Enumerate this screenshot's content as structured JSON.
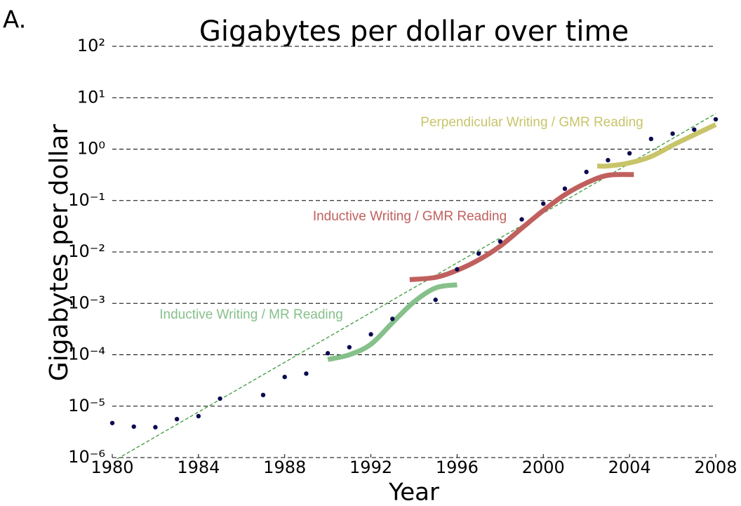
{
  "chart_data": {
    "type": "scatter",
    "panel_label": "A.",
    "title": "Gigabytes per dollar over time",
    "xlabel": "Year",
    "ylabel": "Gigabytes per dollar",
    "xlim": [
      1980,
      2008
    ],
    "ylim": [
      1e-06,
      100
    ],
    "yscale": "log",
    "grid": true,
    "xticks": [
      1980,
      1984,
      1988,
      1992,
      1996,
      2000,
      2004,
      2008
    ],
    "yticks": [
      {
        "value": 1e-06,
        "label": "10⁻⁶"
      },
      {
        "value": 1e-05,
        "label": "10⁻⁵"
      },
      {
        "value": 0.0001,
        "label": "10⁻⁴"
      },
      {
        "value": 0.001,
        "label": "10⁻³"
      },
      {
        "value": 0.01,
        "label": "10⁻²"
      },
      {
        "value": 0.1,
        "label": "10⁻¹"
      },
      {
        "value": 1,
        "label": "10⁰"
      },
      {
        "value": 10,
        "label": "10¹"
      },
      {
        "value": 100,
        "label": "10²"
      }
    ],
    "points": {
      "color": "#0b0b50",
      "x": [
        1980,
        1981,
        1982,
        1983,
        1984,
        1985,
        1987,
        1988,
        1989,
        1990,
        1991,
        1992,
        1993,
        1995,
        1996,
        1997,
        1998,
        1999,
        2000,
        2001,
        2002,
        2003,
        2004,
        2005,
        2006,
        2007,
        2008
      ],
      "values": [
        4.7e-06,
        4e-06,
        3.9e-06,
        5.6e-06,
        6.4e-06,
        1.4e-05,
        1.65e-05,
        3.7e-05,
        4.3e-05,
        0.000107,
        0.00014,
        0.00025,
        0.0005,
        0.00117,
        0.0046,
        0.0093,
        0.016,
        0.043,
        0.087,
        0.17,
        0.36,
        0.61,
        0.83,
        1.58,
        2.0,
        2.4,
        3.8
      ]
    },
    "trend": {
      "color": "#3a9a3a",
      "x": [
        1980,
        2008
      ],
      "values": [
        8.3e-07,
        4.9
      ]
    },
    "curves": [
      {
        "name": "Inductive Writing / MR Reading",
        "color": "#86c08a",
        "x": [
          1990,
          1991,
          1992,
          1993,
          1994,
          1995,
          1996
        ],
        "values": [
          8.1e-05,
          0.0001,
          0.00016,
          0.00042,
          0.00107,
          0.002,
          0.0023
        ]
      },
      {
        "name": "Inductive Writing / GMR Reading",
        "color": "#c0605e",
        "x": [
          1993.8,
          1995,
          1996,
          1997,
          1998,
          1999,
          2000,
          2001,
          2002,
          2003,
          2004.2
        ],
        "values": [
          0.0029,
          0.0032,
          0.0044,
          0.007,
          0.013,
          0.029,
          0.064,
          0.13,
          0.22,
          0.31,
          0.32
        ]
      },
      {
        "name": "Perpendicular Writing / GMR Reading",
        "color": "#c8c46a",
        "x": [
          2002.5,
          2003,
          2004,
          2005,
          2006,
          2007,
          2008
        ],
        "values": [
          0.47,
          0.47,
          0.54,
          0.72,
          1.19,
          1.9,
          3.0
        ]
      }
    ]
  }
}
